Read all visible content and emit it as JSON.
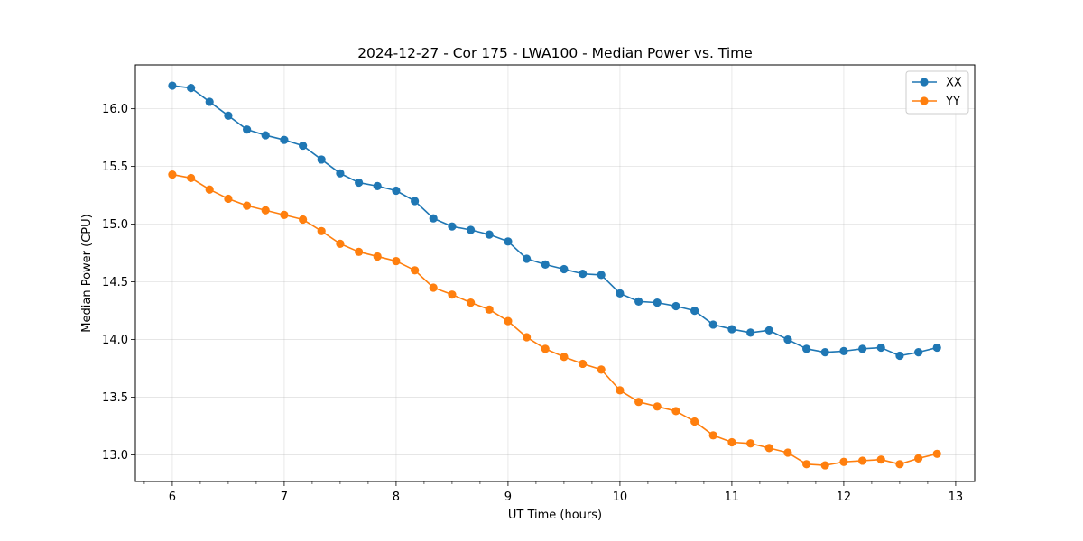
{
  "chart_data": {
    "type": "line",
    "title": "2024-12-27 - Cor 175 - LWA100 - Median Power vs. Time",
    "xlabel": "UT Time (hours)",
    "ylabel": "Median Power (CPU)",
    "xlim": [
      5.67,
      13.17
    ],
    "ylim": [
      12.77,
      16.38
    ],
    "xticks": [
      6,
      7,
      8,
      9,
      10,
      11,
      12,
      13
    ],
    "xtick_labels": [
      "6",
      "7",
      "8",
      "9",
      "10",
      "11",
      "12",
      "13"
    ],
    "yticks": [
      13.0,
      13.5,
      14.0,
      14.5,
      15.0,
      15.5,
      16.0
    ],
    "ytick_labels": [
      "13.0",
      "13.5",
      "14.0",
      "14.5",
      "15.0",
      "15.5",
      "16.0"
    ],
    "grid": true,
    "legend_position": "top-right",
    "x": [
      6.0,
      6.167,
      6.333,
      6.5,
      6.667,
      6.833,
      7.0,
      7.167,
      7.333,
      7.5,
      7.667,
      7.833,
      8.0,
      8.167,
      8.333,
      8.5,
      8.667,
      8.833,
      9.0,
      9.167,
      9.333,
      9.5,
      9.667,
      9.833,
      10.0,
      10.167,
      10.333,
      10.5,
      10.667,
      10.833,
      11.0,
      11.167,
      11.333,
      11.5,
      11.667,
      11.833,
      12.0,
      12.167,
      12.333,
      12.5,
      12.667,
      12.833
    ],
    "series": [
      {
        "name": "XX",
        "color": "#1f77b4",
        "values": [
          16.2,
          16.18,
          16.06,
          15.94,
          15.82,
          15.77,
          15.73,
          15.68,
          15.56,
          15.44,
          15.36,
          15.33,
          15.29,
          15.2,
          15.05,
          14.98,
          14.95,
          14.91,
          14.85,
          14.7,
          14.65,
          14.61,
          14.57,
          14.56,
          14.4,
          14.33,
          14.32,
          14.29,
          14.25,
          14.13,
          14.09,
          14.06,
          14.08,
          14.0,
          13.92,
          13.89,
          13.9,
          13.92,
          13.93,
          13.86,
          13.89,
          13.93
        ]
      },
      {
        "name": "YY",
        "color": "#ff7f0e",
        "values": [
          15.43,
          15.4,
          15.3,
          15.22,
          15.16,
          15.12,
          15.08,
          15.04,
          14.94,
          14.83,
          14.76,
          14.72,
          14.68,
          14.6,
          14.45,
          14.39,
          14.32,
          14.26,
          14.16,
          14.02,
          13.92,
          13.85,
          13.79,
          13.74,
          13.56,
          13.46,
          13.42,
          13.38,
          13.29,
          13.17,
          13.11,
          13.1,
          13.06,
          13.02,
          12.92,
          12.91,
          12.94,
          12.95,
          12.96,
          12.92,
          12.97,
          13.01
        ]
      }
    ]
  }
}
